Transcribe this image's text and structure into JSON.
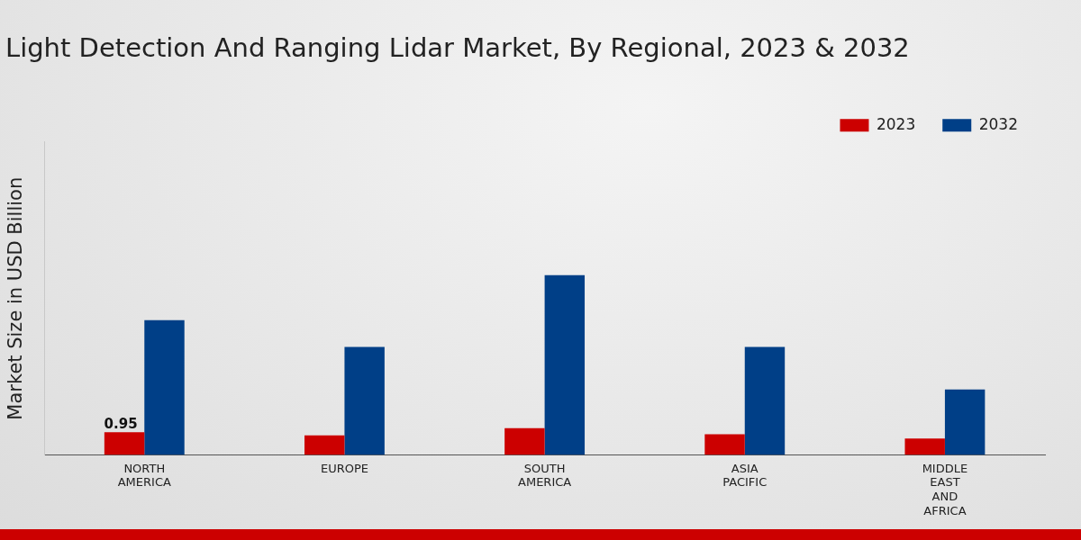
{
  "chart_data": {
    "type": "bar",
    "title": "Light Detection And Ranging Lidar Market, By Regional, 2023 & 2032",
    "y_label": "Market Size in USD Billion",
    "categories": [
      "NORTH AMERICA",
      "EUROPE",
      "SOUTH AMERICA",
      "ASIA PACIFIC",
      "MIDDLE EAST AND AFRICA"
    ],
    "series": [
      {
        "name": "2023",
        "color": "#cc0000",
        "values": [
          0.95,
          0.82,
          1.12,
          0.86,
          0.69
        ],
        "value_labels": [
          "0.95",
          null,
          null,
          null,
          null
        ]
      },
      {
        "name": "2032",
        "color": "#003f87",
        "values": [
          5.6,
          4.49,
          7.47,
          4.49,
          2.72
        ]
      }
    ],
    "ylim": [
      0,
      13
    ],
    "grid": false,
    "legend": "top-right",
    "tick_labels": "x"
  }
}
